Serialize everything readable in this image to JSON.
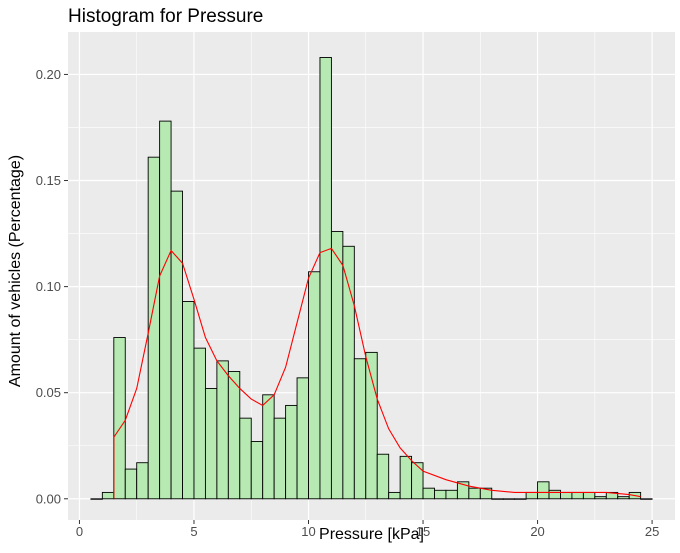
{
  "chart_data": {
    "type": "bar",
    "title": "Histogram for Pressure",
    "xlabel": "Pressure [kPa]",
    "ylabel": "Amount of vehicles (Percentage)",
    "xlim": [
      -0.5,
      26
    ],
    "ylim": [
      -0.01,
      0.22
    ],
    "xticks": [
      0,
      5,
      10,
      15,
      20,
      25
    ],
    "xtick_labels": [
      "0",
      "5",
      "10",
      "15",
      "20",
      "25"
    ],
    "yticks": [
      0,
      0.05,
      0.1,
      0.15,
      0.2
    ],
    "ytick_labels": [
      "0.00",
      "0.05",
      "0.10",
      "0.15",
      "0.20"
    ],
    "grid": true,
    "bin_width": 0.5,
    "bin_centers": [
      0.75,
      1.25,
      1.75,
      2.25,
      2.75,
      3.25,
      3.75,
      4.25,
      4.75,
      5.25,
      5.75,
      6.25,
      6.75,
      7.25,
      7.75,
      8.25,
      8.75,
      9.25,
      9.75,
      10.25,
      10.75,
      11.25,
      11.75,
      12.25,
      12.75,
      13.25,
      13.75,
      14.25,
      14.75,
      15.25,
      15.75,
      16.25,
      16.75,
      17.25,
      17.75,
      18.25,
      18.75,
      19.25,
      19.75,
      20.25,
      20.75,
      21.25,
      21.75,
      22.25,
      22.75,
      23.25,
      23.75,
      24.25,
      24.75
    ],
    "values": [
      0,
      0.003,
      0.076,
      0.014,
      0.017,
      0.161,
      0.178,
      0.145,
      0.093,
      0.071,
      0.052,
      0.065,
      0.06,
      0.038,
      0.027,
      0.049,
      0.038,
      0.044,
      0.057,
      0.107,
      0.208,
      0.126,
      0.119,
      0.066,
      0.069,
      0.021,
      0.003,
      0.02,
      0.017,
      0.005,
      0.004,
      0.004,
      0.008,
      0.005,
      0.005,
      0,
      0,
      0,
      0.003,
      0.008,
      0.004,
      0.003,
      0.003,
      0.003,
      0.001,
      0.003,
      0.001,
      0.003,
      0
    ],
    "density_curve": {
      "color": "#ff0000",
      "x": [
        1.5,
        1.5,
        2,
        2.5,
        3,
        3.5,
        4,
        4.5,
        5,
        5.5,
        6,
        6.5,
        7,
        7.5,
        8,
        8.5,
        9,
        9.5,
        10,
        10.5,
        11,
        11.5,
        12,
        12.5,
        13,
        13.5,
        14,
        14.5,
        15,
        16,
        17,
        18,
        19,
        20,
        21,
        22,
        23,
        24,
        24.5
      ],
      "y": [
        0,
        0.029,
        0.037,
        0.052,
        0.078,
        0.105,
        0.117,
        0.111,
        0.094,
        0.076,
        0.065,
        0.058,
        0.052,
        0.047,
        0.044,
        0.049,
        0.062,
        0.083,
        0.104,
        0.116,
        0.118,
        0.11,
        0.091,
        0.067,
        0.047,
        0.033,
        0.024,
        0.018,
        0.013,
        0.009,
        0.006,
        0.004,
        0.003,
        0.003,
        0.003,
        0.003,
        0.003,
        0.002,
        0.001
      ]
    },
    "colors": {
      "bar_fill": "#b7e9b2",
      "bar_stroke": "#000000",
      "panel": "#ebebeb",
      "grid": "#ffffff"
    }
  }
}
